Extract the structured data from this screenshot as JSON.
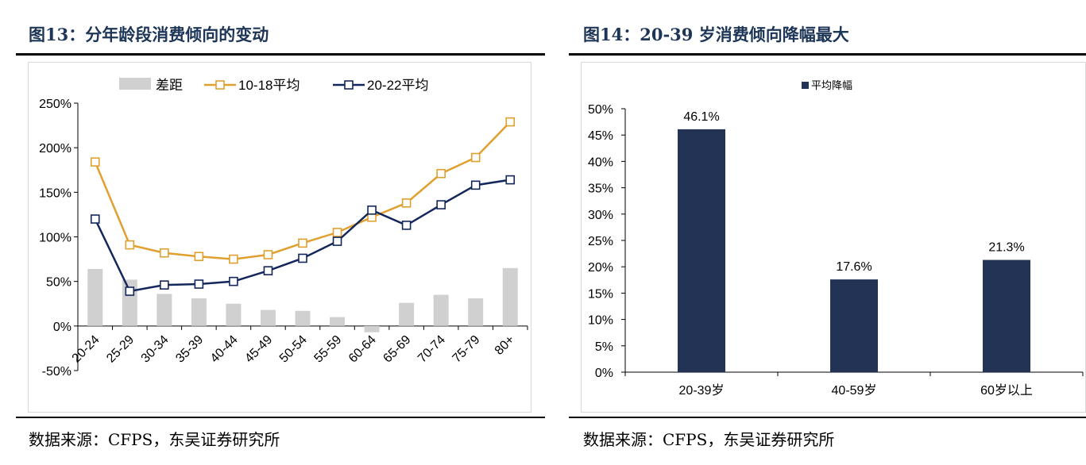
{
  "left": {
    "title": "图13：分年龄段消费倾向的变动",
    "source": "数据来源：CFPS，东吴证券研究所",
    "chart_data": {
      "type": "line",
      "categories": [
        "20-24",
        "25-29",
        "30-34",
        "35-39",
        "40-44",
        "45-49",
        "50-54",
        "55-59",
        "60-64",
        "65-69",
        "70-74",
        "75-79",
        "80+"
      ],
      "ylim": [
        -50,
        250
      ],
      "yticks": [
        "-50%",
        "0%",
        "50%",
        "100%",
        "150%",
        "200%",
        "250%"
      ],
      "ytick_values": [
        -50,
        0,
        50,
        100,
        150,
        200,
        250
      ],
      "grid": false,
      "legend_position": "top",
      "series": [
        {
          "name": "差距",
          "kind": "bar",
          "color": "#d0d0d0",
          "values": [
            64,
            52,
            36,
            31,
            25,
            18,
            17,
            10,
            -7,
            26,
            35,
            31,
            65
          ]
        },
        {
          "name": "10-18平均",
          "kind": "line",
          "color": "#e0a030",
          "values": [
            184,
            91,
            82,
            78,
            75,
            80,
            93,
            105,
            122,
            138,
            171,
            189,
            229
          ]
        },
        {
          "name": "20-22平均",
          "kind": "line",
          "color": "#14275c",
          "values": [
            120,
            39,
            46,
            47,
            50,
            62,
            76,
            95,
            130,
            113,
            136,
            158,
            164
          ]
        }
      ]
    }
  },
  "right": {
    "title": "图14：20-39 岁消费倾向降幅最大",
    "source": "数据来源：CFPS，东吴证券研究所",
    "chart_data": {
      "type": "bar",
      "categories": [
        "20-39岁",
        "40-59岁",
        "60岁以上"
      ],
      "series": [
        {
          "name": "平均降幅",
          "color": "#223355",
          "values": [
            46.1,
            17.6,
            21.3
          ]
        }
      ],
      "value_labels": [
        "46.1%",
        "17.6%",
        "21.3%"
      ],
      "ylim": [
        0,
        50
      ],
      "yticks": [
        "0%",
        "5%",
        "10%",
        "15%",
        "20%",
        "25%",
        "30%",
        "35%",
        "40%",
        "45%",
        "50%"
      ],
      "ytick_values": [
        0,
        5,
        10,
        15,
        20,
        25,
        30,
        35,
        40,
        45,
        50
      ],
      "grid": false,
      "legend_position": "top"
    }
  }
}
